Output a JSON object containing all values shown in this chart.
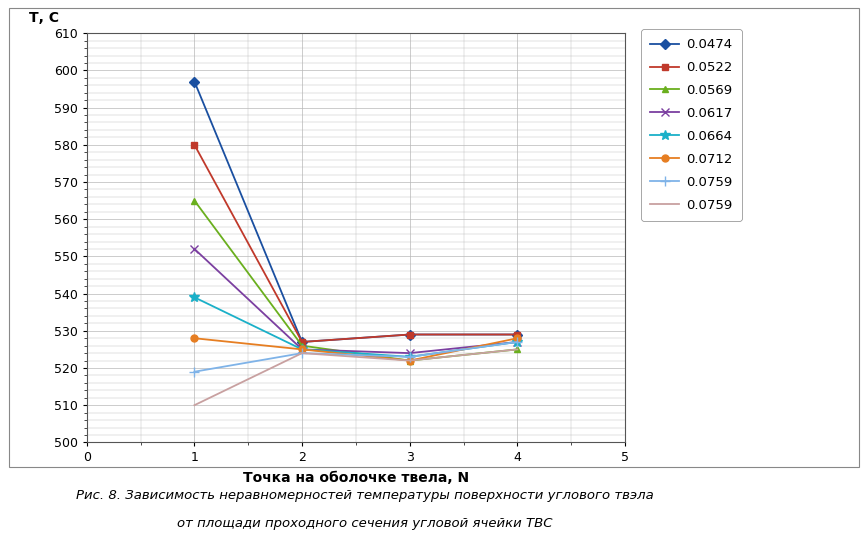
{
  "series": [
    {
      "label": "0.0474",
      "color": "#1a4fa0",
      "marker": "D",
      "markersize": 5,
      "linewidth": 1.3,
      "x": [
        1,
        2,
        3,
        4
      ],
      "y": [
        597,
        527,
        529,
        529
      ]
    },
    {
      "label": "0.0522",
      "color": "#c0392b",
      "marker": "s",
      "markersize": 5,
      "linewidth": 1.3,
      "x": [
        1,
        2,
        3,
        4
      ],
      "y": [
        580,
        527,
        529,
        529
      ]
    },
    {
      "label": "0.0569",
      "color": "#6aaf1e",
      "marker": "^",
      "markersize": 5,
      "linewidth": 1.3,
      "x": [
        1,
        2,
        3,
        4
      ],
      "y": [
        565,
        526,
        522,
        525
      ]
    },
    {
      "label": "0.0617",
      "color": "#7b3fa0",
      "marker": "x",
      "markersize": 6,
      "linewidth": 1.3,
      "x": [
        1,
        2,
        3,
        4
      ],
      "y": [
        552,
        525,
        524,
        527
      ]
    },
    {
      "label": "0.0664",
      "color": "#1ab0c8",
      "marker": "*",
      "markersize": 7,
      "linewidth": 1.3,
      "x": [
        1,
        2,
        3,
        4
      ],
      "y": [
        539,
        525,
        523,
        527
      ]
    },
    {
      "label": "0.0712",
      "color": "#e67e22",
      "marker": "o",
      "markersize": 5,
      "linewidth": 1.3,
      "x": [
        1,
        2,
        3,
        4
      ],
      "y": [
        528,
        525,
        522,
        528
      ]
    },
    {
      "label": "0.0759",
      "color": "#7fb3e8",
      "marker": "+",
      "markersize": 7,
      "linewidth": 1.3,
      "x": [
        1,
        2,
        3,
        4
      ],
      "y": [
        519,
        524,
        523,
        527
      ]
    },
    {
      "label": "0.0759",
      "color": "#c8a0a0",
      "marker": "None",
      "markersize": 5,
      "linewidth": 1.3,
      "x": [
        1,
        2,
        3,
        4
      ],
      "y": [
        510,
        524,
        522,
        525
      ]
    }
  ],
  "xlabel": "Точка на оболочке твела, N",
  "ylabel": "Т, С",
  "xlim": [
    0,
    5
  ],
  "ylim": [
    500,
    610
  ],
  "xticks": [
    0,
    1,
    2,
    3,
    4,
    5
  ],
  "yticks": [
    500,
    510,
    520,
    530,
    540,
    550,
    560,
    570,
    580,
    590,
    600,
    610
  ],
  "grid_color": "#b8b8b8",
  "background_color": "#ffffff",
  "caption_line1": "Рис. 8. Зависимость неравномерностей температуры поверхности углового твэла",
  "caption_line2": "от площади проходного сечения угловой ячейки ТВС"
}
